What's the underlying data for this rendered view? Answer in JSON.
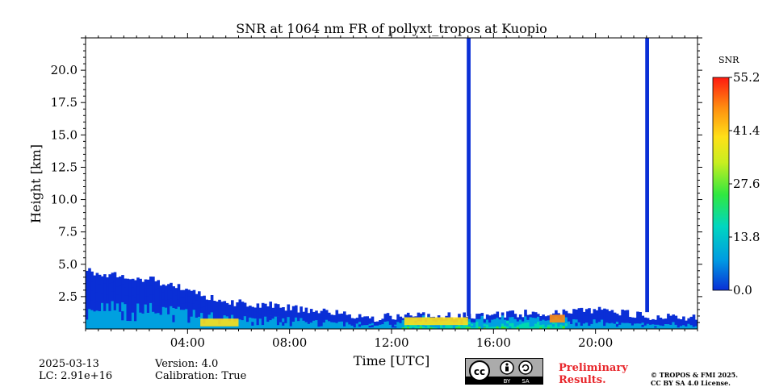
{
  "chart_data": {
    "type": "heatmap",
    "title": "SNR at 1064 nm FR of pollyxt_tropos at Kuopio",
    "xlabel": "Time [UTC]",
    "ylabel": "Height [km]",
    "xlim": [
      0,
      24
    ],
    "ylim": [
      0,
      22.5
    ],
    "x_ticks": [
      "04:00",
      "08:00",
      "12:00",
      "16:00",
      "20:00"
    ],
    "x_tick_values": [
      4,
      8,
      12,
      16,
      20
    ],
    "y_ticks": [
      "2.5",
      "5.0",
      "7.5",
      "10.0",
      "12.5",
      "15.0",
      "17.5",
      "20.0"
    ],
    "y_tick_values": [
      2.5,
      5.0,
      7.5,
      10.0,
      12.5,
      15.0,
      17.5,
      20.0
    ],
    "colorbar": {
      "label": "SNR",
      "range": [
        0.0,
        55.2
      ],
      "ticks": [
        "0.0",
        "13.8",
        "27.6",
        "41.4",
        "55.2"
      ],
      "tick_values": [
        0.0,
        13.8,
        27.6,
        41.4,
        55.2
      ]
    },
    "boundary_layer_top_km": [
      [
        0.0,
        4.5
      ],
      [
        1.0,
        4.2
      ],
      [
        2.0,
        4.0
      ],
      [
        3.0,
        3.6
      ],
      [
        4.0,
        3.0
      ],
      [
        5.0,
        2.3
      ],
      [
        6.0,
        2.0
      ],
      [
        7.0,
        1.9
      ],
      [
        8.0,
        1.6
      ],
      [
        9.0,
        1.5
      ],
      [
        10.0,
        1.2
      ],
      [
        11.0,
        0.7
      ],
      [
        12.0,
        1.0
      ],
      [
        13.0,
        1.0
      ],
      [
        14.0,
        1.0
      ],
      [
        15.0,
        1.0
      ],
      [
        16.0,
        1.1
      ],
      [
        17.0,
        1.2
      ],
      [
        18.0,
        1.2
      ],
      [
        19.0,
        1.4
      ],
      [
        20.0,
        1.5
      ],
      [
        21.0,
        1.3
      ],
      [
        22.0,
        1.0
      ],
      [
        23.0,
        0.9
      ],
      [
        24.0,
        0.9
      ]
    ],
    "high_snr_features": [
      {
        "time_start": 4.5,
        "time_end": 6.0,
        "height_km": 0.5,
        "snr": 40
      },
      {
        "time_start": 12.5,
        "time_end": 15.0,
        "height_km": 0.6,
        "snr": 38
      },
      {
        "time_start": 18.2,
        "time_end": 18.8,
        "height_km": 0.8,
        "snr": 45
      }
    ],
    "missing_data_columns": [
      {
        "time_start": 14.95,
        "time_end": 15.1,
        "from_km": 1.0,
        "to_km": 22.5
      },
      {
        "time_start": 21.95,
        "time_end": 22.1,
        "from_km": 1.3,
        "to_km": 22.5
      }
    ],
    "colormap": [
      "#0a2fd6",
      "#00a0e0",
      "#00d8b0",
      "#38e830",
      "#c8ee20",
      "#ffe018",
      "#ff8c10",
      "#ff2010"
    ]
  },
  "footer": {
    "date": "2025-03-13",
    "lc": "LC: 2.91e+16",
    "version": "Version: 4.0",
    "calibration": "Calibration: True",
    "preliminary": "Preliminary\nResults.",
    "copyright_line1": "© TROPOS & FMI 2025.",
    "copyright_line2": "CC BY SA 4.0 License.",
    "license_by": "BY",
    "license_sa": "SA"
  }
}
